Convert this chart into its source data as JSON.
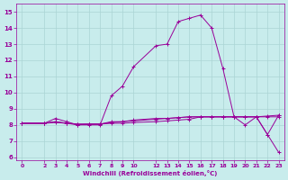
{
  "xlabel": "Windchill (Refroidissement éolien,°C)",
  "bg_color": "#c8ecec",
  "line_color": "#990099",
  "grid_color": "#aad4d4",
  "ylim": [
    5.8,
    15.5
  ],
  "xlim": [
    -0.5,
    23.5
  ],
  "yticks": [
    6,
    7,
    8,
    9,
    10,
    11,
    12,
    13,
    14,
    15
  ],
  "xticks": [
    0,
    2,
    3,
    4,
    5,
    6,
    7,
    8,
    9,
    10,
    12,
    13,
    14,
    15,
    16,
    17,
    18,
    19,
    20,
    21,
    22,
    23
  ],
  "series": [
    {
      "x": [
        0,
        2,
        3,
        4,
        5,
        6,
        7,
        8,
        9,
        10,
        12,
        13,
        14,
        15,
        16,
        17,
        18,
        19,
        20,
        21,
        22,
        23
      ],
      "y": [
        8.1,
        8.1,
        8.4,
        8.2,
        8.0,
        8.0,
        8.0,
        9.8,
        10.4,
        11.6,
        12.9,
        13.0,
        14.4,
        14.6,
        14.8,
        14.0,
        11.5,
        8.5,
        8.0,
        8.5,
        7.4,
        8.6
      ]
    },
    {
      "x": [
        0,
        2,
        3,
        4,
        5,
        6,
        7,
        8,
        9,
        10,
        12,
        13,
        14,
        15,
        16,
        17,
        18,
        19,
        20,
        21,
        22,
        23
      ],
      "y": [
        8.1,
        8.1,
        8.15,
        8.1,
        8.05,
        8.05,
        8.05,
        8.1,
        8.1,
        8.15,
        8.2,
        8.25,
        8.3,
        8.35,
        8.5,
        8.5,
        8.5,
        8.5,
        8.5,
        8.5,
        8.55,
        8.6
      ]
    },
    {
      "x": [
        0,
        2,
        3,
        4,
        5,
        6,
        7,
        8,
        9,
        10,
        12,
        13,
        14,
        15,
        16,
        17,
        18,
        19,
        20,
        21,
        22,
        23
      ],
      "y": [
        8.1,
        8.1,
        8.2,
        8.1,
        8.05,
        8.05,
        8.05,
        8.15,
        8.2,
        8.25,
        8.35,
        8.4,
        8.45,
        8.5,
        8.5,
        8.5,
        8.5,
        8.5,
        8.5,
        8.5,
        7.4,
        6.3
      ]
    },
    {
      "x": [
        0,
        2,
        3,
        4,
        5,
        6,
        7,
        8,
        9,
        10,
        12,
        13,
        14,
        15,
        16,
        17,
        18,
        19,
        20,
        21,
        22,
        23
      ],
      "y": [
        8.1,
        8.1,
        8.2,
        8.1,
        8.0,
        8.05,
        8.05,
        8.2,
        8.2,
        8.3,
        8.4,
        8.4,
        8.45,
        8.5,
        8.5,
        8.5,
        8.5,
        8.5,
        8.5,
        8.5,
        8.5,
        8.5
      ]
    }
  ]
}
